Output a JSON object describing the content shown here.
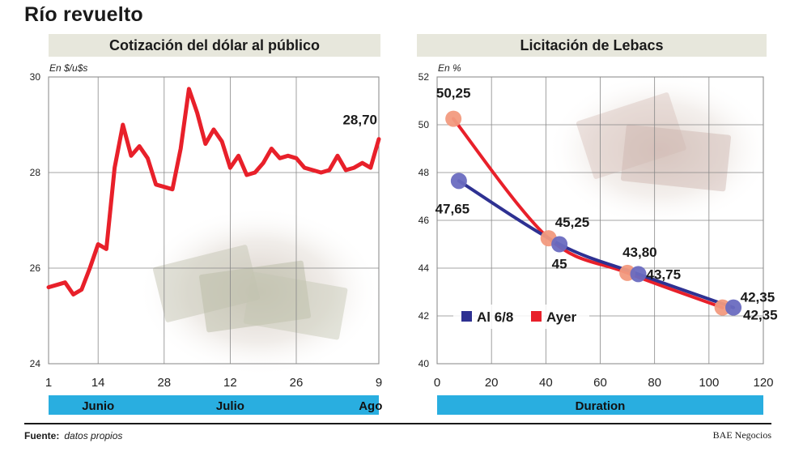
{
  "title": "Río revuelto",
  "chart_data": [
    {
      "type": "line",
      "title": "Cotización del dólar al público",
      "ylabel": "En $/u$s",
      "ylim": [
        24,
        30
      ],
      "yticks": [
        24,
        26,
        28,
        30
      ],
      "xlim": [
        1,
        41
      ],
      "xticks": [
        {
          "x": 1,
          "label": "1"
        },
        {
          "x": 7,
          "label": "14"
        },
        {
          "x": 15,
          "label": "28"
        },
        {
          "x": 23,
          "label": "12"
        },
        {
          "x": 31,
          "label": "26"
        },
        {
          "x": 41,
          "label": "9"
        }
      ],
      "month_bands": [
        "Junio",
        "Julio",
        "Ago"
      ],
      "last_value_label": "28,70",
      "series": [
        {
          "color": "#e8202a",
          "points": [
            [
              1,
              25.6
            ],
            [
              2,
              25.65
            ],
            [
              3,
              25.7
            ],
            [
              4,
              25.45
            ],
            [
              5,
              25.55
            ],
            [
              6,
              26.0
            ],
            [
              7,
              26.5
            ],
            [
              8,
              26.4
            ],
            [
              9,
              28.1
            ],
            [
              10,
              29.0
            ],
            [
              11,
              28.35
            ],
            [
              12,
              28.55
            ],
            [
              13,
              28.3
            ],
            [
              14,
              27.75
            ],
            [
              15,
              27.7
            ],
            [
              16,
              27.65
            ],
            [
              17,
              28.5
            ],
            [
              18,
              29.75
            ],
            [
              19,
              29.25
            ],
            [
              20,
              28.6
            ],
            [
              21,
              28.9
            ],
            [
              22,
              28.65
            ],
            [
              23,
              28.1
            ],
            [
              24,
              28.35
            ],
            [
              25,
              27.95
            ],
            [
              26,
              28.0
            ],
            [
              27,
              28.2
            ],
            [
              28,
              28.5
            ],
            [
              29,
              28.3
            ],
            [
              30,
              28.35
            ],
            [
              31,
              28.3
            ],
            [
              32,
              28.1
            ],
            [
              33,
              28.05
            ],
            [
              34,
              28.0
            ],
            [
              35,
              28.05
            ],
            [
              36,
              28.35
            ],
            [
              37,
              28.05
            ],
            [
              38,
              28.1
            ],
            [
              39,
              28.2
            ],
            [
              40,
              28.1
            ],
            [
              41,
              28.7
            ]
          ]
        }
      ]
    },
    {
      "type": "line",
      "title": "Licitación de Lebacs",
      "ylabel": "En %",
      "xlabel": "Duration",
      "ylim": [
        40,
        52
      ],
      "yticks": [
        40,
        42,
        44,
        46,
        48,
        50,
        52
      ],
      "xlim": [
        0,
        120
      ],
      "xticks": [
        0,
        20,
        40,
        60,
        80,
        100,
        120
      ],
      "series": [
        {
          "name": "Al 6/8",
          "color": "#2e3192",
          "points": [
            [
              8,
              47.65
            ],
            [
              45,
              45
            ],
            [
              74,
              43.75
            ],
            [
              109,
              42.35
            ]
          ],
          "labels": [
            "47,65",
            "45",
            "43,75",
            "42,35"
          ]
        },
        {
          "name": "Ayer",
          "color": "#e8202a",
          "points": [
            [
              6,
              50.25
            ],
            [
              41,
              45.25
            ],
            [
              70,
              43.8
            ],
            [
              105,
              42.35
            ]
          ],
          "labels": [
            "50,25",
            "45,25",
            "43,80",
            "42,35"
          ]
        }
      ]
    }
  ],
  "footer": {
    "source_label": "Fuente:",
    "source_value": "datos propios",
    "brand": "BAE Negocios"
  }
}
